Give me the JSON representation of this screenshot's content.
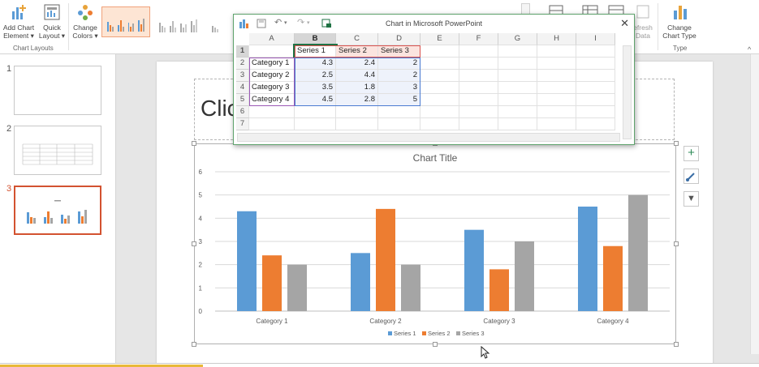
{
  "ribbon": {
    "add_chart_element": {
      "line1": "Add Chart",
      "line2": "Element ▾"
    },
    "quick_layout": {
      "line1": "Quick",
      "line2": "Layout ▾"
    },
    "change_colors": {
      "line1": "Change",
      "line2": "Colors ▾"
    },
    "chart_layouts_group": "Chart Layouts",
    "refresh_data": {
      "line1": "efresh",
      "line2": "Data"
    },
    "change_chart_type": {
      "line1": "Change",
      "line2": "Chart Type"
    },
    "type_group": "Type"
  },
  "thumbnails": [
    {
      "number": "1"
    },
    {
      "number": "2"
    },
    {
      "number": "3"
    }
  ],
  "slide": {
    "title_placeholder": "Clic"
  },
  "spreadsheet": {
    "window_title": "Chart in Microsoft PowerPoint",
    "close_glyph": "✕",
    "columns": [
      "A",
      "B",
      "C",
      "D",
      "E",
      "F",
      "G",
      "H",
      "I"
    ],
    "rows": [
      "1",
      "2",
      "3",
      "4",
      "5",
      "6",
      "7"
    ],
    "header_row": [
      "",
      "Series 1",
      "Series 2",
      "Series 3"
    ],
    "data_rows": [
      [
        "Category 1",
        "4.3",
        "2.4",
        "2"
      ],
      [
        "Category 2",
        "2.5",
        "4.4",
        "2"
      ],
      [
        "Category 3",
        "3.5",
        "1.8",
        "3"
      ],
      [
        "Category 4",
        "4.5",
        "2.8",
        "5"
      ]
    ]
  },
  "chart_buttons": {
    "add": "+",
    "filter": "▼"
  },
  "chart_data": {
    "type": "bar",
    "title": "Chart Title",
    "categories": [
      "Category 1",
      "Category 2",
      "Category 3",
      "Category 4"
    ],
    "series": [
      {
        "name": "Series 1",
        "values": [
          4.3,
          2.5,
          3.5,
          4.5
        ],
        "color": "#5b9bd5"
      },
      {
        "name": "Series 2",
        "values": [
          2.4,
          4.4,
          1.8,
          2.8
        ],
        "color": "#ed7d31"
      },
      {
        "name": "Series 3",
        "values": [
          2,
          2,
          3,
          5
        ],
        "color": "#a5a5a5"
      }
    ],
    "yticks": [
      "0",
      "1",
      "2",
      "3",
      "4",
      "5",
      "6"
    ],
    "ylim": [
      0,
      6
    ],
    "grid": true,
    "legend_position": "bottom"
  }
}
